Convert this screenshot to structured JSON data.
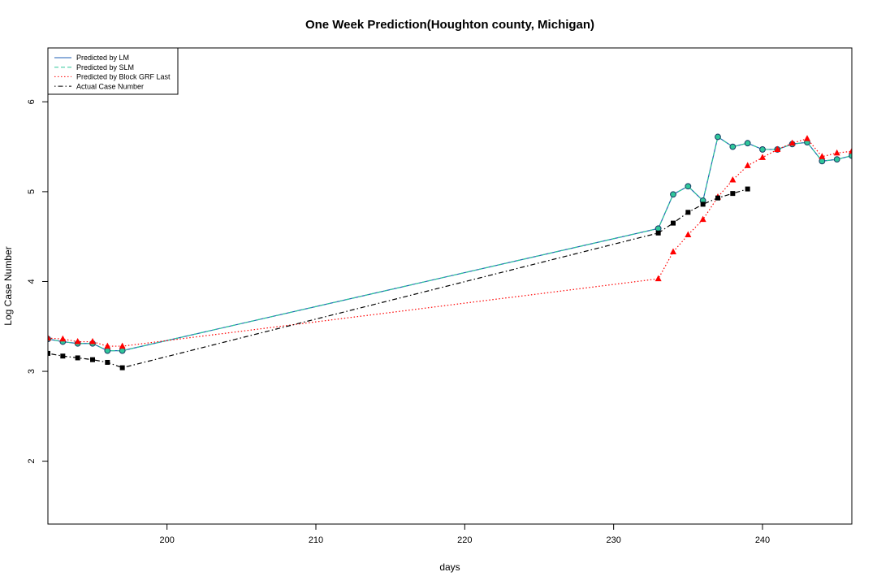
{
  "chart_data": {
    "type": "line",
    "title": "One Week Prediction(Houghton county, Michigan)",
    "xlabel": "days",
    "ylabel": "Log Case Number",
    "xlim": [
      192,
      246
    ],
    "ylim": [
      1.3,
      6.6
    ],
    "xticks": [
      200,
      210,
      220,
      230,
      240
    ],
    "yticks": [
      2,
      3,
      4,
      5,
      6
    ],
    "legend_position": "top-left",
    "series": [
      {
        "name": "Predicted by LM",
        "color": "#1f5fb4",
        "marker": "none",
        "dash": "solid",
        "points": [
          [
            192,
            3.36
          ],
          [
            193,
            3.33
          ],
          [
            194,
            3.31
          ],
          [
            195,
            3.31
          ],
          [
            196,
            3.23
          ],
          [
            197,
            3.23
          ],
          [
            233,
            4.59
          ],
          [
            234,
            4.97
          ],
          [
            235,
            5.06
          ],
          [
            236,
            4.9
          ],
          [
            237,
            5.61
          ],
          [
            238,
            5.5
          ],
          [
            239,
            5.54
          ],
          [
            240,
            5.47
          ],
          [
            241,
            5.47
          ],
          [
            242,
            5.53
          ],
          [
            243,
            5.55
          ],
          [
            244,
            5.34
          ],
          [
            245,
            5.36
          ],
          [
            246,
            5.4
          ]
        ]
      },
      {
        "name": "Predicted by SLM",
        "color": "#2fc79a",
        "marker": "circle",
        "dash": "dashed",
        "points": [
          [
            192,
            3.36
          ],
          [
            193,
            3.33
          ],
          [
            194,
            3.31
          ],
          [
            195,
            3.31
          ],
          [
            196,
            3.23
          ],
          [
            197,
            3.23
          ],
          [
            233,
            4.59
          ],
          [
            234,
            4.97
          ],
          [
            235,
            5.06
          ],
          [
            236,
            4.9
          ],
          [
            237,
            5.61
          ],
          [
            238,
            5.5
          ],
          [
            239,
            5.54
          ],
          [
            240,
            5.47
          ],
          [
            241,
            5.47
          ],
          [
            242,
            5.53
          ],
          [
            243,
            5.55
          ],
          [
            244,
            5.34
          ],
          [
            245,
            5.36
          ],
          [
            246,
            5.4
          ]
        ]
      },
      {
        "name": "Predicted by Block GRF Last",
        "color": "#ff0000",
        "marker": "triangle",
        "dash": "dotted",
        "points": [
          [
            192,
            3.37
          ],
          [
            193,
            3.36
          ],
          [
            194,
            3.33
          ],
          [
            195,
            3.33
          ],
          [
            196,
            3.28
          ],
          [
            197,
            3.28
          ],
          [
            233,
            4.03
          ],
          [
            234,
            4.33
          ],
          [
            235,
            4.52
          ],
          [
            236,
            4.69
          ],
          [
            237,
            4.94
          ],
          [
            238,
            5.13
          ],
          [
            239,
            5.29
          ],
          [
            240,
            5.38
          ],
          [
            241,
            5.47
          ],
          [
            242,
            5.54
          ],
          [
            243,
            5.59
          ],
          [
            244,
            5.39
          ],
          [
            245,
            5.43
          ],
          [
            246,
            5.45
          ]
        ]
      },
      {
        "name": "Actual Case Number",
        "color": "#000000",
        "marker": "square",
        "dash": "dotdash",
        "points": [
          [
            192,
            3.2
          ],
          [
            193,
            3.17
          ],
          [
            194,
            3.15
          ],
          [
            195,
            3.13
          ],
          [
            196,
            3.1
          ],
          [
            197,
            3.04
          ],
          [
            233,
            4.54
          ],
          [
            234,
            4.65
          ],
          [
            235,
            4.77
          ],
          [
            236,
            4.86
          ],
          [
            237,
            4.93
          ],
          [
            238,
            4.98
          ],
          [
            239,
            5.03
          ]
        ]
      }
    ]
  }
}
